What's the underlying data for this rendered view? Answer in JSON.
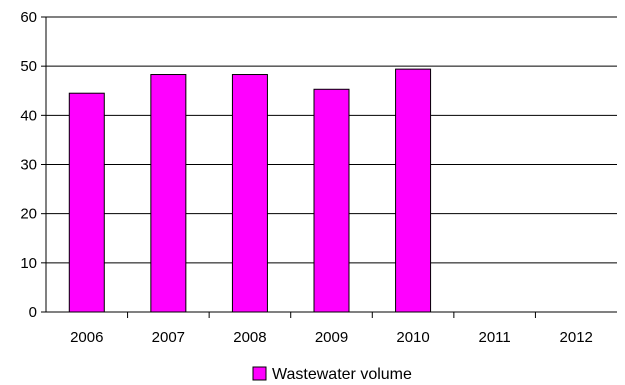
{
  "chart_data": {
    "type": "bar",
    "categories": [
      "2006",
      "2007",
      "2008",
      "2009",
      "2010",
      "2011",
      "2012"
    ],
    "series": [
      {
        "name": "Wastewater volume",
        "values": [
          44.5,
          48.3,
          48.3,
          45.3,
          49.4,
          null,
          null
        ],
        "color": "#ff00ff"
      }
    ],
    "ylim": [
      0,
      60
    ],
    "yticks": [
      "0",
      "10",
      "20",
      "30",
      "40",
      "50",
      "60"
    ],
    "grid": true,
    "legend_placement": "bottom",
    "xlabel": "",
    "ylabel": "",
    "title": ""
  }
}
